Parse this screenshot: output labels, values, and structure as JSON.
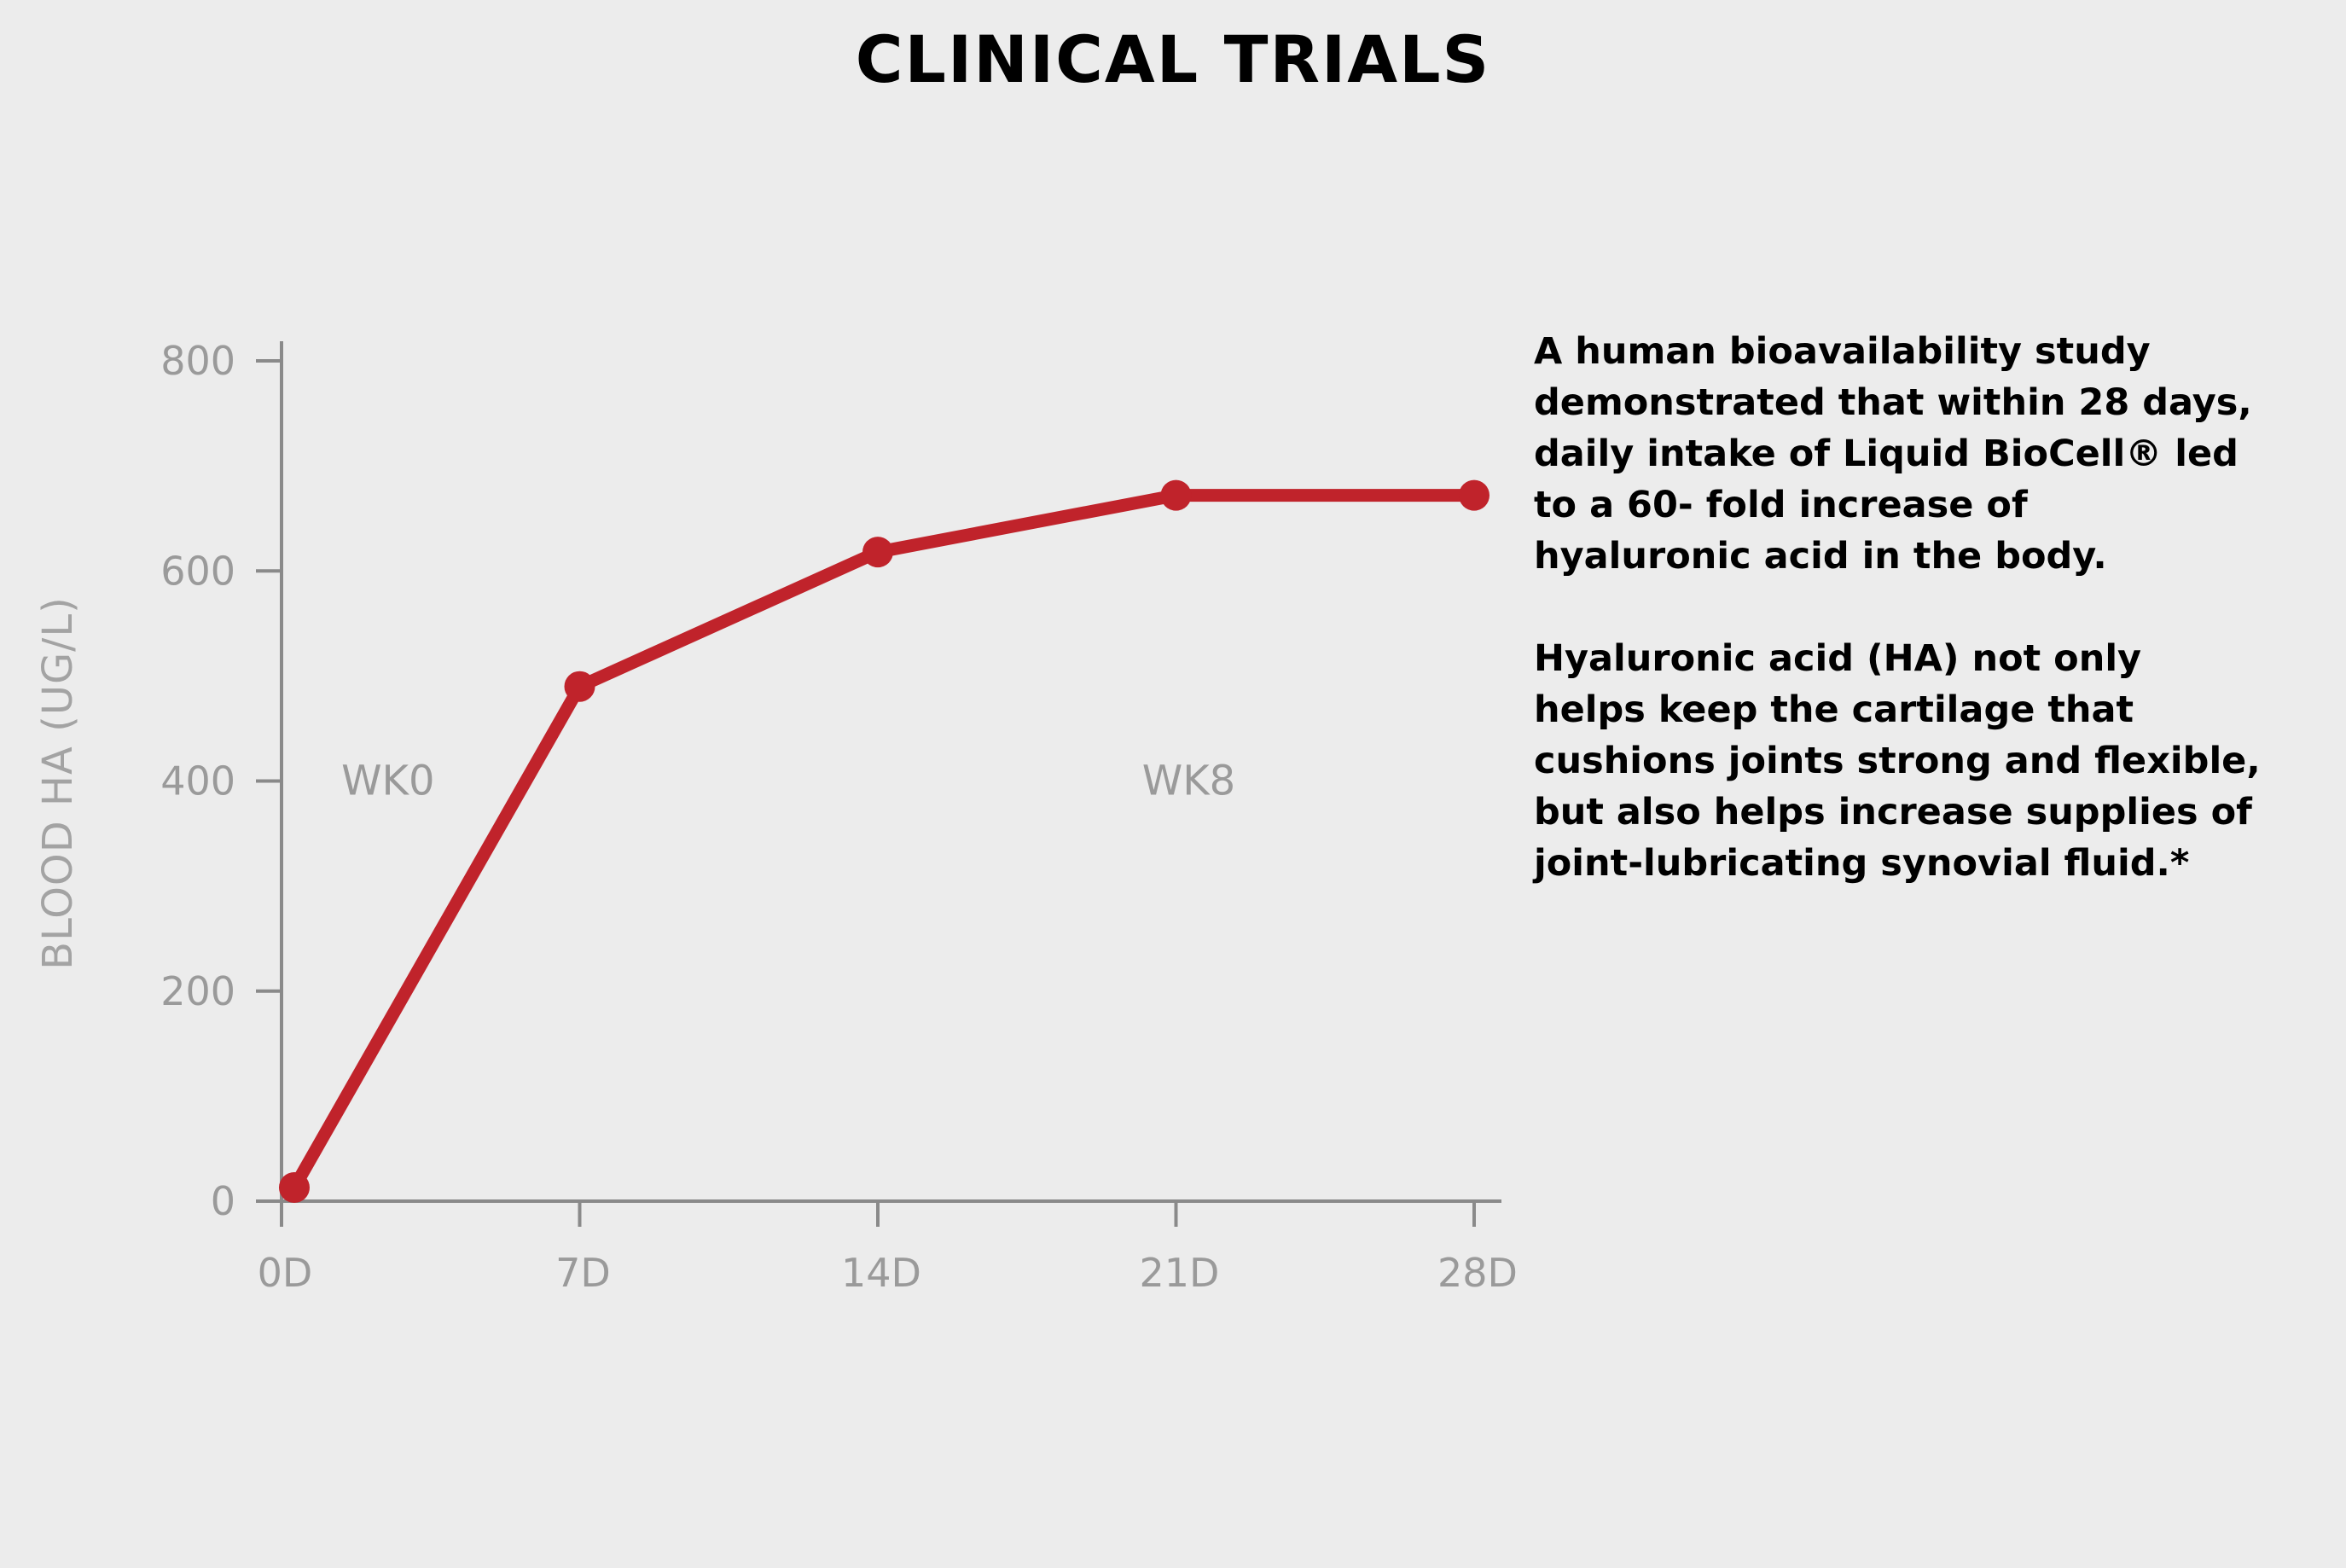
{
  "title": "CLINICAL TRIALS",
  "description": {
    "paragraphs": [
      "A human bioavailability study\ndemonstrated that within 28 days,\ndaily intake of Liquid BioCell® led\nto a 60- fold increase of\nhyaluronic acid in the body.",
      "Hyaluronic acid (HA) not only\nhelps keep the cartilage that\ncushions joints strong and flexible,\nbut also helps increase supplies of\njoint-lubricating synovial fluid.*"
    ]
  },
  "chart_data": {
    "type": "line",
    "title": "",
    "xlabel": "",
    "ylabel": "BLOOD HA (UG/L)",
    "categories": [
      "0D",
      "7D",
      "14D",
      "21D",
      "28D"
    ],
    "x": [
      0,
      7,
      14,
      21,
      28
    ],
    "y_ticks": [
      0,
      200,
      400,
      600,
      800
    ],
    "y_tick_labels": [
      "0",
      "200",
      "400",
      "600",
      "800"
    ],
    "ylim": [
      0,
      800
    ],
    "xlim": [
      0,
      28
    ],
    "grid": false,
    "series": [
      {
        "color": "#c0232b",
        "points": [
          {
            "x": 0.3,
            "y": 13
          },
          {
            "x": 7,
            "y": 490
          },
          {
            "x": 14,
            "y": 618
          },
          {
            "x": 21,
            "y": 672
          },
          {
            "x": 28,
            "y": 672
          }
        ]
      }
    ],
    "annotations": [
      {
        "text": "WK0",
        "x": 2.5,
        "y": 400
      },
      {
        "text": "WK8",
        "x": 21.3,
        "y": 400
      }
    ],
    "colors": {
      "axis": "#8a8a8a",
      "tick_text": "#9a9a9a",
      "line": "#c0232b"
    }
  }
}
